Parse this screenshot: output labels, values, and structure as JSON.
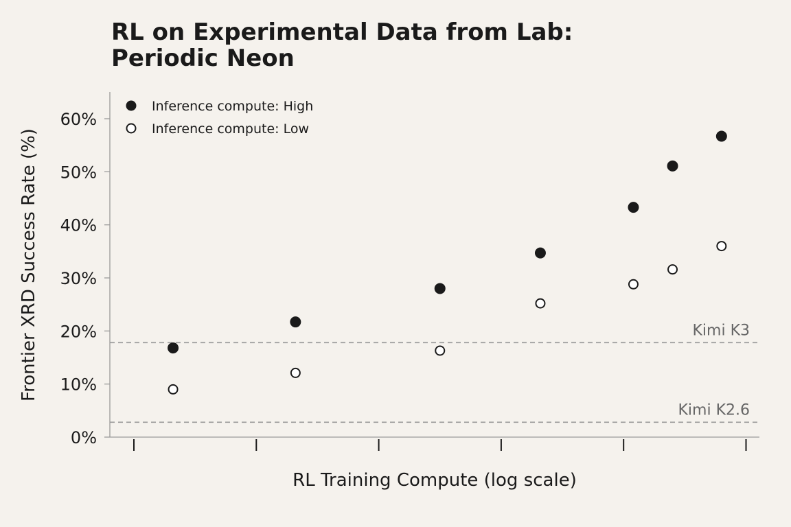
{
  "chart_data": {
    "type": "scatter",
    "title_lines": [
      "RL on Experimental Data from Lab:",
      "Periodic Neon"
    ],
    "xlabel": "RL Training Compute (log scale)",
    "ylabel": "Frontier XRD Success Rate (%)",
    "ylim": [
      0,
      65
    ],
    "yticks": [
      0,
      10,
      20,
      30,
      40,
      50,
      60
    ],
    "ytick_labels": [
      "0%",
      "10%",
      "20%",
      "30%",
      "40%",
      "50%",
      "60%"
    ],
    "xlim": [
      -0.2,
      4.82
    ],
    "xticks": [
      0,
      1,
      2,
      3,
      4,
      5
    ],
    "grid": false,
    "legend_position": "top-left",
    "series": [
      {
        "name": "Inference compute: High",
        "marker": "filled",
        "color": "#1a1a1a",
        "x": [
          0.32,
          1.32,
          2.5,
          3.32,
          4.08,
          4.4,
          4.8
        ],
        "y": [
          16.8,
          21.7,
          28.0,
          34.7,
          43.3,
          51.1,
          56.7
        ]
      },
      {
        "name": "Inference compute: Low",
        "marker": "hollow",
        "color": "#1a1a1a",
        "x": [
          0.32,
          1.32,
          2.5,
          3.32,
          4.08,
          4.4,
          4.8
        ],
        "y": [
          9.0,
          12.1,
          16.3,
          25.2,
          28.8,
          31.6,
          36.0
        ]
      }
    ],
    "reference_lines": [
      {
        "label": "Kimi K3",
        "y": 17.8,
        "color": "#999999"
      },
      {
        "label": "Kimi K2.6",
        "y": 2.8,
        "color": "#999999"
      }
    ]
  }
}
